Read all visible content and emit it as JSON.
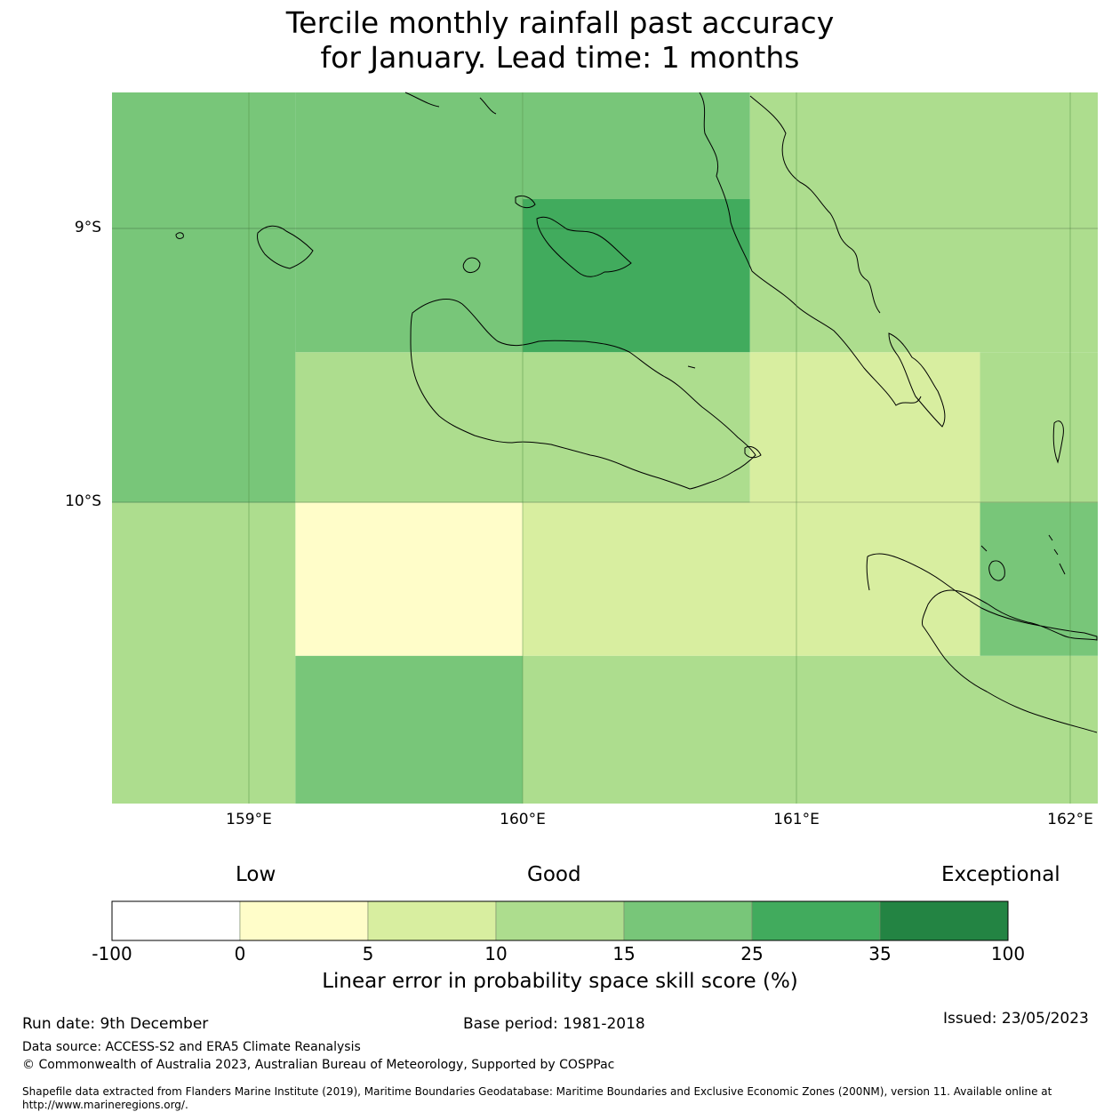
{
  "title": {
    "line1": "Tercile monthly rainfall past accuracy",
    "line2": "for January. Lead time: 1 months"
  },
  "map": {
    "lat_labels": [
      "9°S",
      "10°S"
    ],
    "lon_labels": [
      "159°E",
      "160°E",
      "161°E",
      "162°E"
    ],
    "grid_cells": [
      {
        "lon_from": 158.5,
        "lon_to": 159.17,
        "lat_from": -8.5,
        "lat_to": -10.0,
        "skill_class": "15-25"
      },
      {
        "lon_from": 159.17,
        "lon_to": 160.0,
        "lat_from": -8.5,
        "lat_to": -9.45,
        "skill_class": "15-25"
      },
      {
        "lon_from": 160.0,
        "lon_to": 160.83,
        "lat_from": -8.5,
        "lat_to": -8.89,
        "skill_class": "15-25"
      },
      {
        "lon_from": 160.0,
        "lon_to": 160.83,
        "lat_from": -8.89,
        "lat_to": -9.45,
        "skill_class": "25-35"
      },
      {
        "lon_from": 160.83,
        "lon_to": 162.1,
        "lat_from": -8.5,
        "lat_to": -9.45,
        "skill_class": "10-15"
      },
      {
        "lon_from": 159.17,
        "lon_to": 160.83,
        "lat_from": -9.45,
        "lat_to": -10.0,
        "skill_class": "10-15"
      },
      {
        "lon_from": 160.83,
        "lon_to": 161.67,
        "lat_from": -9.45,
        "lat_to": -10.0,
        "skill_class": "5-10"
      },
      {
        "lon_from": 161.67,
        "lon_to": 162.1,
        "lat_from": -9.45,
        "lat_to": -10.0,
        "skill_class": "10-15"
      },
      {
        "lon_from": 158.5,
        "lon_to": 159.17,
        "lat_from": -10.0,
        "lat_to": -11.1,
        "skill_class": "10-15"
      },
      {
        "lon_from": 159.17,
        "lon_to": 160.0,
        "lat_from": -10.0,
        "lat_to": -10.56,
        "skill_class": "0-5"
      },
      {
        "lon_from": 160.0,
        "lon_to": 161.67,
        "lat_from": -10.0,
        "lat_to": -10.56,
        "skill_class": "5-10"
      },
      {
        "lon_from": 161.67,
        "lon_to": 162.1,
        "lat_from": -10.0,
        "lat_to": -10.56,
        "skill_class": "15-25"
      },
      {
        "lon_from": 159.17,
        "lon_to": 160.0,
        "lat_from": -10.56,
        "lat_to": -11.1,
        "skill_class": "15-25"
      },
      {
        "lon_from": 160.0,
        "lon_to": 162.1,
        "lat_from": -10.56,
        "lat_to": -11.1,
        "skill_class": "10-15"
      }
    ]
  },
  "colorbar": {
    "categories": [
      "Low",
      "Good",
      "Exceptional"
    ],
    "ticks": [
      "-100",
      "0",
      "5",
      "10",
      "15",
      "25",
      "35",
      "100"
    ],
    "colors": [
      "#ffffff",
      "#fffdc9",
      "#d8eea0",
      "#addd8e",
      "#78c679",
      "#41ab5d",
      "#238443"
    ],
    "label": "Linear error in probability space skill score (%)"
  },
  "footer": {
    "run_date": "Run date: 9th December",
    "base_period": "Base period: 1981-2018",
    "issued": "Issued: 23/05/2023",
    "data_source": "Data source: ACCESS-S2 and ERA5 Climate Reanalysis",
    "copyright": "© Commonwealth of Australia 2023, Australian Bureau of Meteorology, Supported by COSPPac",
    "shapefile_line1": "Shapefile data extracted from Flanders Marine Institute (2019), Maritime Boundaries Geodatabase: Maritime Boundaries and Exclusive Economic Zones (200NM), version 11. Available online at",
    "shapefile_line2": "http://www.marineregions.org/."
  }
}
